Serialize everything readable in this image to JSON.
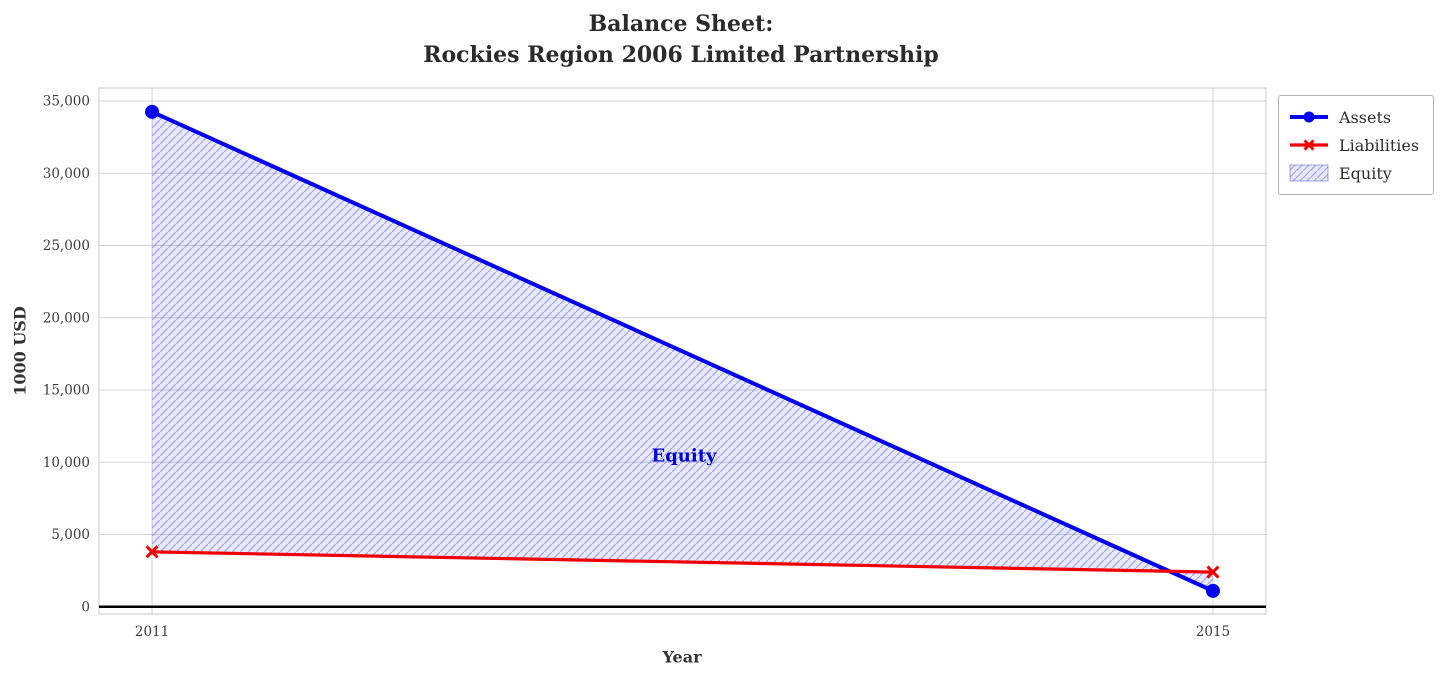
{
  "chart_data": {
    "type": "line",
    "title": "Balance Sheet:\nRockies Region 2006 Limited Partnership",
    "title_lines": [
      "Balance Sheet:",
      "Rockies Region 2006 Limited Partnership"
    ],
    "xlabel": "Year",
    "ylabel": "1000 USD",
    "x": [
      2011,
      2015
    ],
    "x_ticks": [
      "2011",
      "2015"
    ],
    "x_tick_values": [
      2011,
      2015
    ],
    "y_ticks": [
      "0",
      "5,000",
      "10,000",
      "15,000",
      "20,000",
      "25,000",
      "30,000",
      "35,000"
    ],
    "y_tick_values": [
      0,
      5000,
      10000,
      15000,
      20000,
      25000,
      30000,
      35000
    ],
    "xlim": [
      2010.8,
      2015.2
    ],
    "ylim": [
      -500,
      35900
    ],
    "grid": true,
    "series": [
      {
        "name": "Assets",
        "values": [
          34250,
          1100
        ],
        "color": "#0000ee",
        "marker": "circle",
        "line_width": 4
      },
      {
        "name": "Liabilities",
        "values": [
          3800,
          2400
        ],
        "color": "#ee0000",
        "marker": "x",
        "line_width": 3.2
      }
    ],
    "fill_between": {
      "name": "Equity",
      "between": [
        "Assets",
        "Liabilities"
      ],
      "fill_color": "rgba(64,64,224,0.12)",
      "hatch_color": "rgba(80,80,200,0.42)",
      "hatch": "diagonal"
    },
    "annotation": {
      "text": "Equity",
      "x": 2013,
      "y": 10400,
      "color": "#0000dd"
    },
    "zero_line_color": "#000000",
    "legend": {
      "position": "outside-top-right",
      "entries": [
        {
          "label": "Assets",
          "type": "line-circle"
        },
        {
          "label": "Liabilities",
          "type": "line-x"
        },
        {
          "label": "Equity",
          "type": "hatched-patch"
        }
      ]
    }
  }
}
